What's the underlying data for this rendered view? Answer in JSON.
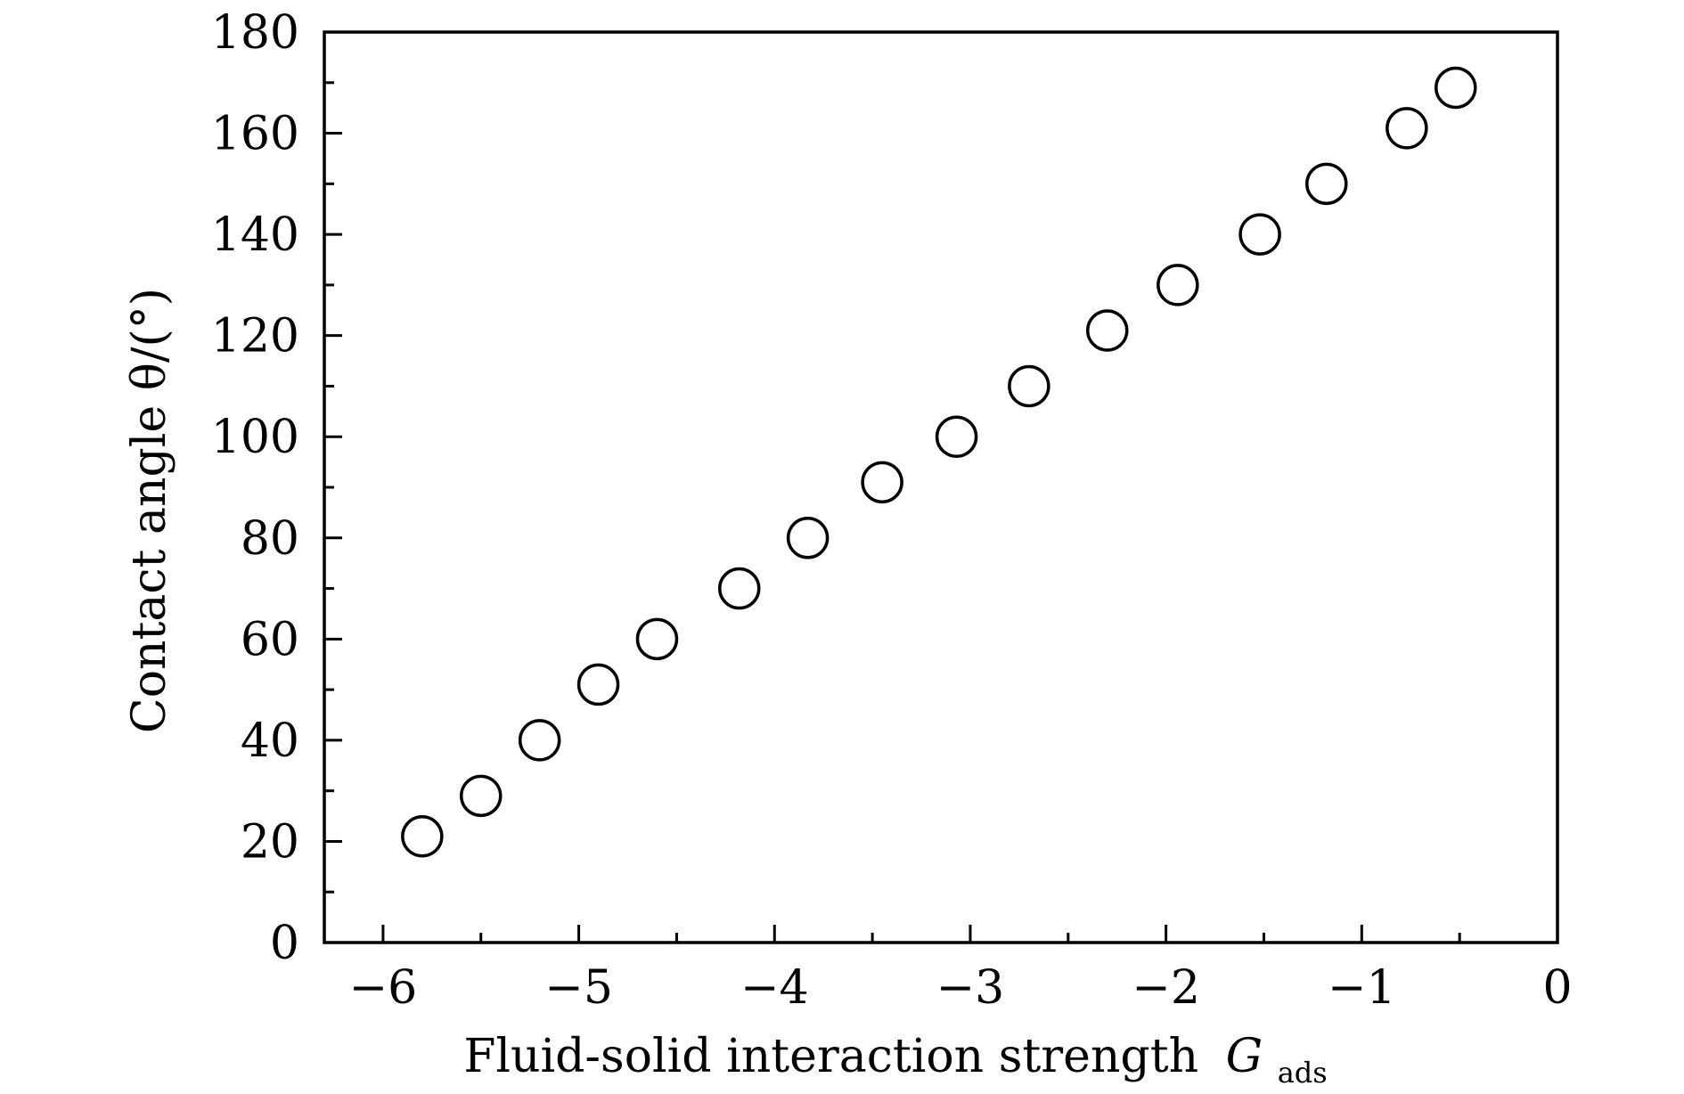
{
  "chart_data": {
    "type": "scatter",
    "title": "",
    "xlabel": "Fluid-solid interaction strength",
    "xlabel_symbol": "G",
    "xlabel_subscript": "ads",
    "ylabel": "Contact angle θ/(°)",
    "xlim": [
      -6.3,
      0
    ],
    "ylim": [
      0,
      180
    ],
    "x_major_ticks": [
      -6,
      -5,
      -4,
      -3,
      -2,
      -1,
      0
    ],
    "x_tick_labels": [
      "−6",
      "−5",
      "−4",
      "−3",
      "−2",
      "−1",
      "0"
    ],
    "y_major_ticks": [
      0,
      20,
      40,
      60,
      80,
      100,
      120,
      140,
      160,
      180
    ],
    "y_tick_labels": [
      "0",
      "20",
      "40",
      "60",
      "80",
      "100",
      "120",
      "140",
      "160",
      "180"
    ],
    "grid": false,
    "marker": "open-circle",
    "series": [
      {
        "x": [
          -5.8,
          -5.5,
          -5.2,
          -4.9,
          -4.6,
          -4.18,
          -3.83,
          -3.45,
          -3.07,
          -2.7,
          -2.3,
          -1.94,
          -1.52,
          -1.18,
          -0.77,
          -0.52
        ],
        "y": [
          21,
          29,
          40,
          51,
          60,
          70,
          80,
          91,
          100,
          110,
          121,
          130,
          140,
          150,
          161,
          169
        ]
      }
    ]
  }
}
